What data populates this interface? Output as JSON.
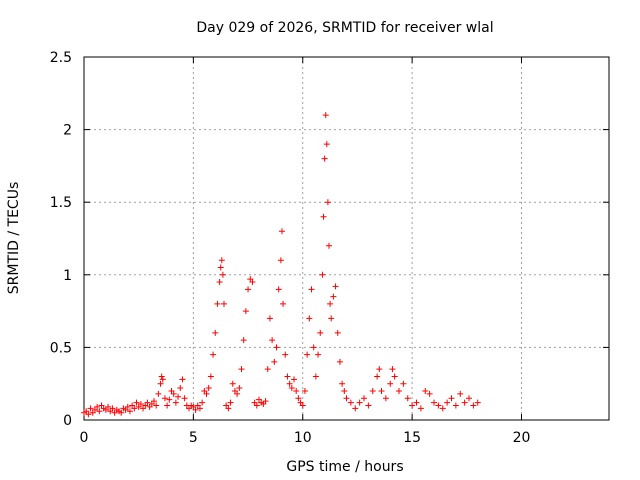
{
  "chart_data": {
    "type": "scatter",
    "title": "Day 029 of 2026, SRMTID for receiver wlal",
    "xlabel": "GPS time / hours",
    "ylabel": "SRMTID / TECUs",
    "xlim": [
      0,
      24
    ],
    "ylim": [
      0,
      2.5
    ],
    "grid": true,
    "marker": "+",
    "series_color": "#ff0000",
    "x_ticks": [
      0,
      5,
      10,
      15,
      20
    ],
    "x_tick_labels": [
      "0",
      "5",
      "10",
      "15",
      "20"
    ],
    "y_ticks": [
      0,
      0.5,
      1,
      1.5,
      2,
      2.5
    ],
    "y_tick_labels": [
      "0",
      "0.5",
      "1",
      "1.5",
      "2",
      "2.5"
    ],
    "points": [
      [
        0.0,
        0.05
      ],
      [
        0.1,
        0.06
      ],
      [
        0.2,
        0.04
      ],
      [
        0.3,
        0.08
      ],
      [
        0.4,
        0.05
      ],
      [
        0.5,
        0.07
      ],
      [
        0.6,
        0.09
      ],
      [
        0.7,
        0.06
      ],
      [
        0.8,
        0.1
      ],
      [
        0.9,
        0.08
      ],
      [
        1.0,
        0.07
      ],
      [
        1.1,
        0.09
      ],
      [
        1.2,
        0.06
      ],
      [
        1.3,
        0.08
      ],
      [
        1.4,
        0.05
      ],
      [
        1.5,
        0.07
      ],
      [
        1.6,
        0.06
      ],
      [
        1.7,
        0.05
      ],
      [
        1.8,
        0.08
      ],
      [
        1.9,
        0.07
      ],
      [
        2.0,
        0.09
      ],
      [
        2.1,
        0.06
      ],
      [
        2.2,
        0.1
      ],
      [
        2.3,
        0.08
      ],
      [
        2.4,
        0.12
      ],
      [
        2.5,
        0.09
      ],
      [
        2.6,
        0.11
      ],
      [
        2.7,
        0.08
      ],
      [
        2.8,
        0.1
      ],
      [
        2.9,
        0.12
      ],
      [
        3.0,
        0.09
      ],
      [
        3.1,
        0.11
      ],
      [
        3.2,
        0.13
      ],
      [
        3.3,
        0.1
      ],
      [
        3.4,
        0.18
      ],
      [
        3.5,
        0.25
      ],
      [
        3.55,
        0.3
      ],
      [
        3.6,
        0.28
      ],
      [
        3.7,
        0.15
      ],
      [
        3.8,
        0.1
      ],
      [
        3.9,
        0.14
      ],
      [
        4.0,
        0.2
      ],
      [
        4.1,
        0.18
      ],
      [
        4.2,
        0.12
      ],
      [
        4.3,
        0.16
      ],
      [
        4.4,
        0.22
      ],
      [
        4.5,
        0.28
      ],
      [
        4.6,
        0.15
      ],
      [
        4.7,
        0.1
      ],
      [
        4.8,
        0.08
      ],
      [
        4.9,
        0.1
      ],
      [
        5.0,
        0.09
      ],
      [
        5.1,
        0.07
      ],
      [
        5.2,
        0.1
      ],
      [
        5.3,
        0.08
      ],
      [
        5.4,
        0.12
      ],
      [
        5.5,
        0.2
      ],
      [
        5.6,
        0.18
      ],
      [
        5.7,
        0.22
      ],
      [
        5.8,
        0.3
      ],
      [
        5.9,
        0.45
      ],
      [
        6.0,
        0.6
      ],
      [
        6.1,
        0.8
      ],
      [
        6.2,
        0.95
      ],
      [
        6.25,
        1.05
      ],
      [
        6.3,
        1.1
      ],
      [
        6.35,
        1.0
      ],
      [
        6.4,
        0.8
      ],
      [
        6.5,
        0.1
      ],
      [
        6.6,
        0.08
      ],
      [
        6.7,
        0.12
      ],
      [
        6.8,
        0.25
      ],
      [
        6.9,
        0.2
      ],
      [
        7.0,
        0.18
      ],
      [
        7.1,
        0.22
      ],
      [
        7.2,
        0.35
      ],
      [
        7.3,
        0.55
      ],
      [
        7.4,
        0.75
      ],
      [
        7.5,
        0.9
      ],
      [
        7.6,
        0.97
      ],
      [
        7.7,
        0.95
      ],
      [
        7.8,
        0.12
      ],
      [
        7.9,
        0.1
      ],
      [
        8.0,
        0.14
      ],
      [
        8.1,
        0.12
      ],
      [
        8.2,
        0.11
      ],
      [
        8.3,
        0.13
      ],
      [
        8.4,
        0.35
      ],
      [
        8.5,
        0.7
      ],
      [
        8.6,
        0.55
      ],
      [
        8.7,
        0.4
      ],
      [
        8.8,
        0.5
      ],
      [
        8.9,
        0.9
      ],
      [
        9.0,
        1.1
      ],
      [
        9.05,
        1.3
      ],
      [
        9.1,
        0.8
      ],
      [
        9.2,
        0.45
      ],
      [
        9.3,
        0.3
      ],
      [
        9.4,
        0.25
      ],
      [
        9.5,
        0.22
      ],
      [
        9.6,
        0.28
      ],
      [
        9.7,
        0.2
      ],
      [
        9.8,
        0.15
      ],
      [
        9.9,
        0.12
      ],
      [
        10.0,
        0.1
      ],
      [
        10.1,
        0.2
      ],
      [
        10.2,
        0.45
      ],
      [
        10.3,
        0.7
      ],
      [
        10.4,
        0.9
      ],
      [
        10.5,
        0.5
      ],
      [
        10.6,
        0.3
      ],
      [
        10.7,
        0.45
      ],
      [
        10.8,
        0.6
      ],
      [
        10.9,
        1.0
      ],
      [
        10.95,
        1.4
      ],
      [
        11.0,
        1.8
      ],
      [
        11.05,
        2.1
      ],
      [
        11.1,
        1.9
      ],
      [
        11.15,
        1.5
      ],
      [
        11.2,
        1.2
      ],
      [
        11.25,
        0.8
      ],
      [
        11.3,
        0.7
      ],
      [
        11.4,
        0.85
      ],
      [
        11.5,
        0.92
      ],
      [
        11.6,
        0.6
      ],
      [
        11.7,
        0.4
      ],
      [
        11.8,
        0.25
      ],
      [
        11.9,
        0.2
      ],
      [
        12.0,
        0.15
      ],
      [
        12.2,
        0.12
      ],
      [
        12.4,
        0.08
      ],
      [
        12.6,
        0.12
      ],
      [
        12.8,
        0.15
      ],
      [
        13.0,
        0.1
      ],
      [
        13.2,
        0.2
      ],
      [
        13.4,
        0.3
      ],
      [
        13.5,
        0.35
      ],
      [
        13.6,
        0.2
      ],
      [
        13.8,
        0.15
      ],
      [
        14.0,
        0.25
      ],
      [
        14.1,
        0.35
      ],
      [
        14.2,
        0.3
      ],
      [
        14.4,
        0.2
      ],
      [
        14.6,
        0.25
      ],
      [
        14.8,
        0.15
      ],
      [
        15.0,
        0.1
      ],
      [
        15.2,
        0.12
      ],
      [
        15.4,
        0.08
      ],
      [
        15.6,
        0.2
      ],
      [
        15.8,
        0.18
      ],
      [
        16.0,
        0.12
      ],
      [
        16.2,
        0.1
      ],
      [
        16.4,
        0.08
      ],
      [
        16.6,
        0.12
      ],
      [
        16.8,
        0.15
      ],
      [
        17.0,
        0.1
      ],
      [
        17.2,
        0.18
      ],
      [
        17.4,
        0.12
      ],
      [
        17.6,
        0.15
      ],
      [
        17.8,
        0.1
      ],
      [
        18.0,
        0.12
      ]
    ]
  }
}
